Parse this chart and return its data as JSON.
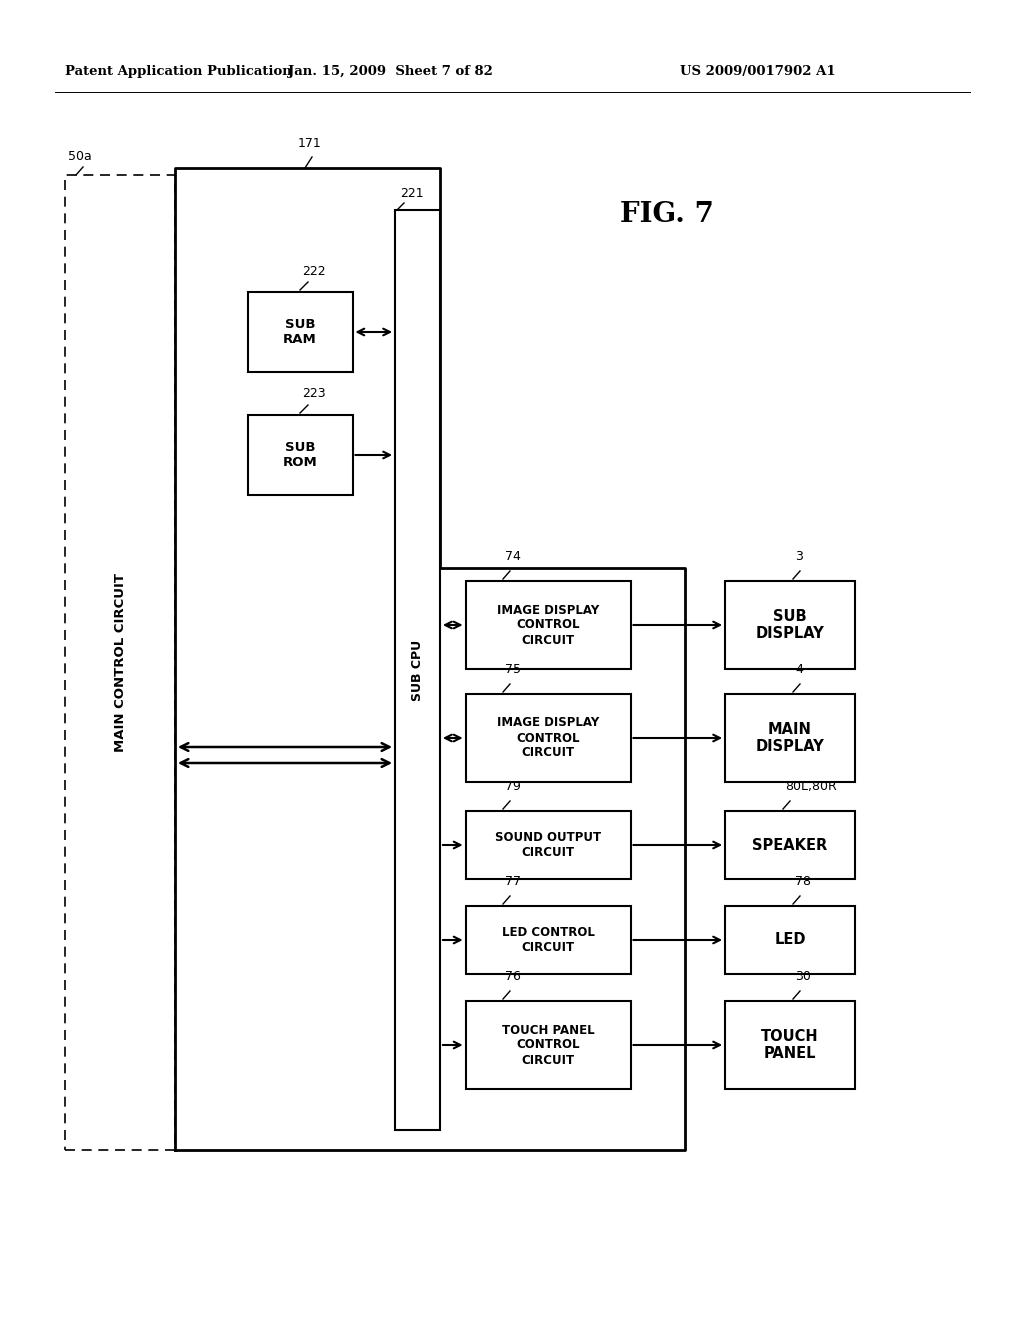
{
  "header_left": "Patent Application Publication",
  "header_mid": "Jan. 15, 2009  Sheet 7 of 82",
  "header_right": "US 2009/0017902 A1",
  "fig_label": "FIG. 7",
  "bg_color": "#ffffff",
  "text_color": "#000000",
  "line_color": "#000000",
  "label_171": "171",
  "label_50a": "50a",
  "label_221": "221",
  "label_222": "222",
  "label_223": "223",
  "label_74": "74",
  "label_75": "75",
  "label_79": "79",
  "label_77": "77",
  "label_76": "76",
  "label_3": "3",
  "label_4": "4",
  "label_80": "80L,80R",
  "label_78": "78",
  "label_30": "30",
  "box_sub_ram": "SUB\nRAM",
  "box_sub_rom": "SUB\nROM",
  "box_sub_cpu": "SUB CPU",
  "box_main_ctrl": "MAIN CONTROL CIRCUIT",
  "box_img74": "IMAGE DISPLAY\nCONTROL\nCIRCUIT",
  "box_img75": "IMAGE DISPLAY\nCONTROL\nCIRCUIT",
  "box_sound": "SOUND OUTPUT\nCIRCUIT",
  "box_led_ctrl": "LED CONTROL\nCIRCUIT",
  "box_touch_ctrl": "TOUCH PANEL\nCONTROL\nCIRCUIT",
  "box_sub_disp": "SUB\nDISPLAY",
  "box_main_disp": "MAIN\nDISPLAY",
  "box_speaker": "SPEAKER",
  "box_led": "LED",
  "box_touch_panel": "TOUCH\nPANEL"
}
